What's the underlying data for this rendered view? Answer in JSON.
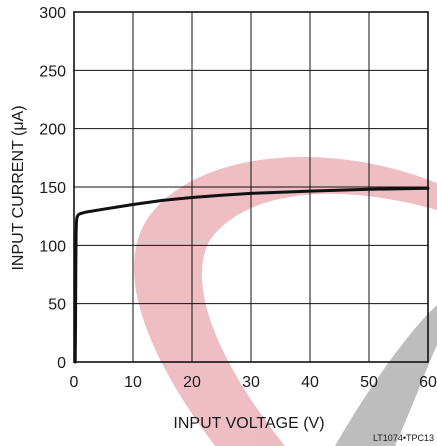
{
  "chart_data": {
    "type": "line",
    "xlabel": "INPUT VOLTAGE (V)",
    "ylabel": "INPUT CURRENT (μA)",
    "xlim": [
      0,
      60
    ],
    "ylim": [
      0,
      300
    ],
    "x_ticks": [
      0,
      10,
      20,
      30,
      40,
      50,
      60
    ],
    "y_ticks": [
      0,
      50,
      100,
      150,
      200,
      250,
      300
    ],
    "grid": true,
    "series": [
      {
        "color": "#111111",
        "x": [
          0.2,
          0.25,
          0.3,
          0.35,
          0.4,
          0.5,
          0.7,
          1,
          2,
          5,
          10,
          15,
          20,
          25,
          30,
          40,
          50,
          60
        ],
        "y": [
          0,
          30,
          80,
          110,
          120,
          124,
          126,
          127,
          128.5,
          131,
          135,
          138.5,
          141,
          143,
          144.5,
          146.5,
          148,
          149
        ]
      }
    ],
    "reference_code": "LT1074•TPC13"
  },
  "watermark_colors": {
    "pink": "#e8a8b0",
    "gray": "#a8a8a8"
  }
}
